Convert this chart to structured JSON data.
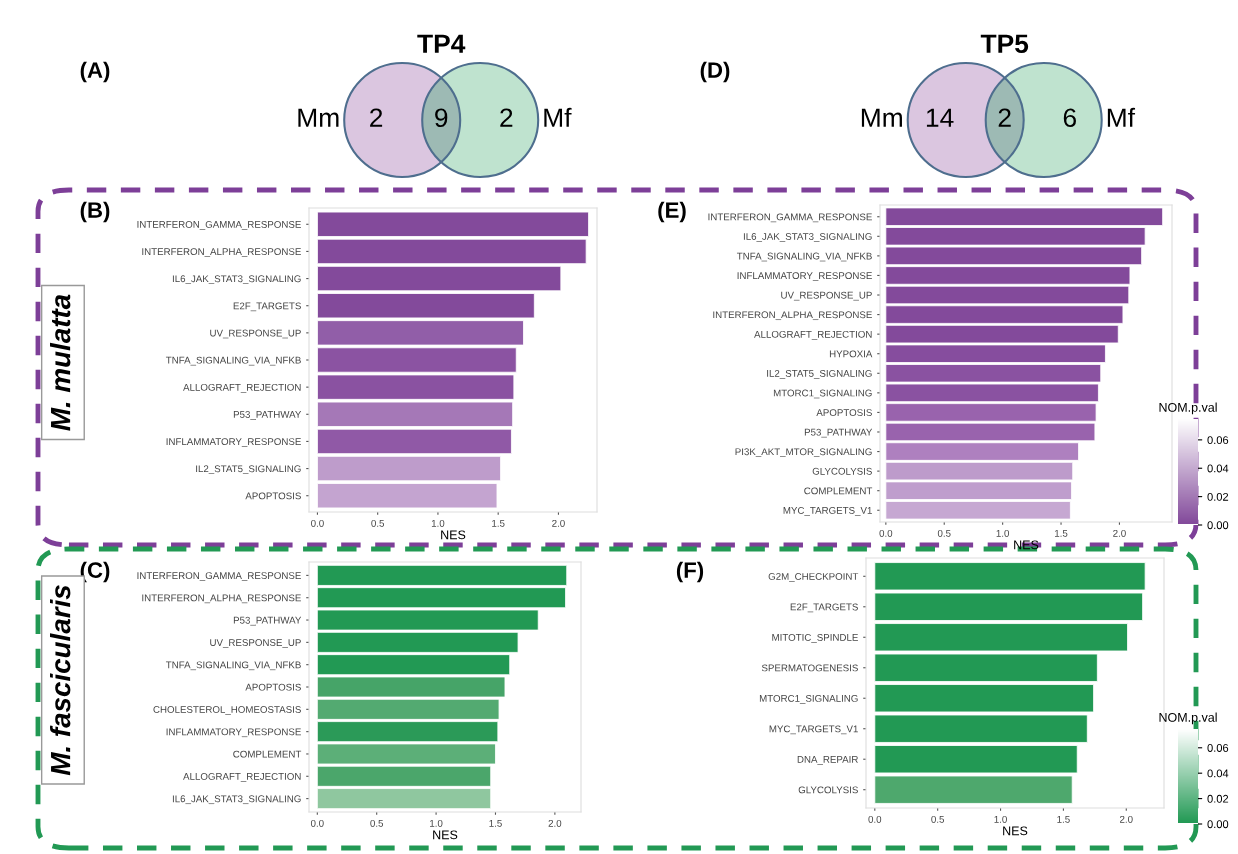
{
  "chart_data": [
    {
      "type": "other",
      "title": "TP4",
      "categories": [
        "Mm",
        null,
        "Mf"
      ],
      "values": [
        2,
        9,
        2
      ],
      "data_labels": true,
      "colors": [
        "#dbc6e0",
        "#9dbab4",
        "#bfe3cf"
      ],
      "annotations": [
        "(A)"
      ]
    },
    {
      "type": "other",
      "title": "TP5",
      "categories": [
        "Mm",
        null,
        "Mf"
      ],
      "values": [
        14,
        2,
        6
      ],
      "data_labels": true,
      "colors": [
        "#dbc6e0",
        "#9dbab4",
        "#bfe3cf"
      ],
      "annotations": [
        "(D)"
      ]
    },
    {
      "type": "bar",
      "orientation": "horizontal",
      "xlabel": "NES",
      "annotations": [
        "(B)",
        "M. mulatta"
      ],
      "categories": [
        "INTERFERON_GAMMA_RESPONSE",
        "INTERFERON_ALPHA_RESPONSE",
        "IL6_JAK_STAT3_SIGNALING",
        "E2F_TARGETS",
        "UV_RESPONSE_UP",
        "TNFA_SIGNALING_VIA_NFKB",
        "ALLOGRAFT_REJECTION",
        "P53_PATHWAY",
        "INFLAMMATORY_RESPONSE",
        "IL2_STAT5_SIGNALING",
        "APOPTOSIS"
      ],
      "values": [
        2.25,
        2.23,
        2.02,
        1.8,
        1.71,
        1.65,
        1.63,
        1.62,
        1.61,
        1.52,
        1.49
      ],
      "colors": [
        "#834a9b",
        "#834a9b",
        "#834a9b",
        "#834a9b",
        "#915ea8",
        "#8b53a2",
        "#8a52a1",
        "#a578b7",
        "#9059a6",
        "#be9ccb",
        "#c4a4d0"
      ],
      "xlim": [
        -0.07,
        2.32
      ],
      "xticks": [
        {
          "value": 0,
          "label": "0.0"
        },
        {
          "value": 0.5,
          "label": "0.5"
        },
        {
          "value": 1,
          "label": "1.0"
        },
        {
          "value": 1.5,
          "label": "1.5"
        },
        {
          "value": 2,
          "label": "2.0"
        }
      ]
    },
    {
      "type": "bar",
      "orientation": "horizontal",
      "xlabel": "NES",
      "annotations": [
        "(E)"
      ],
      "categories": [
        "INTERFERON_GAMMA_RESPONSE",
        "IL6_JAK_STAT3_SIGNALING",
        "TNFA_SIGNALING_VIA_NFKB",
        "INFLAMMATORY_RESPONSE",
        "UV_RESPONSE_UP",
        "INTERFERON_ALPHA_RESPONSE",
        "ALLOGRAFT_REJECTION",
        "HYPOXIA",
        "IL2_STAT5_SIGNALING",
        "MTORC1_SIGNALING",
        "APOPTOSIS",
        "P53_PATHWAY",
        "PI3K_AKT_MTOR_SIGNALING",
        "GLYCOLYSIS",
        "COMPLEMENT",
        "MYC_TARGETS_V1"
      ],
      "values": [
        2.37,
        2.22,
        2.19,
        2.09,
        2.08,
        2.03,
        1.99,
        1.88,
        1.84,
        1.82,
        1.8,
        1.79,
        1.65,
        1.6,
        1.59,
        1.58
      ],
      "colors": [
        "#834a9b",
        "#834a9b",
        "#834a9b",
        "#834a9b",
        "#834a9b",
        "#834a9b",
        "#834a9b",
        "#864d9e",
        "#8a52a1",
        "#8a52a1",
        "#9963ad",
        "#9963ad",
        "#ae80bf",
        "#bd9bcb",
        "#bf9ecd",
        "#c6a8d2"
      ],
      "clabel": "NOM.p.val",
      "clim": [
        0,
        0.074
      ],
      "cticks": [
        {
          "value": 0,
          "label": "0.00"
        },
        {
          "value": 0.02,
          "label": "0.02"
        },
        {
          "value": 0.04,
          "label": "0.04"
        },
        {
          "value": 0.06,
          "label": "0.06"
        }
      ],
      "xlim": [
        -0.05,
        2.45
      ],
      "xticks": [
        {
          "value": 0,
          "label": "0.0"
        },
        {
          "value": 0.5,
          "label": "0.5"
        },
        {
          "value": 1,
          "label": "1.0"
        },
        {
          "value": 1.5,
          "label": "1.5"
        },
        {
          "value": 2,
          "label": "2.0"
        }
      ]
    },
    {
      "type": "bar",
      "orientation": "horizontal",
      "xlabel": "NES",
      "annotations": [
        "(C)",
        "M. fascicularis"
      ],
      "categories": [
        "INTERFERON_GAMMA_RESPONSE",
        "INTERFERON_ALPHA_RESPONSE",
        "P53_PATHWAY",
        "UV_RESPONSE_UP",
        "TNFA_SIGNALING_VIA_NFKB",
        "APOPTOSIS",
        "CHOLESTEROL_HOMEOSTASIS",
        "INFLAMMATORY_RESPONSE",
        "COMPLEMENT",
        "ALLOGRAFT_REJECTION",
        "IL6_JAK_STAT3_SIGNALING"
      ],
      "values": [
        2.1,
        2.09,
        1.86,
        1.69,
        1.62,
        1.58,
        1.53,
        1.52,
        1.5,
        1.46,
        1.46
      ],
      "colors": [
        "#229954",
        "#229954",
        "#229954",
        "#229954",
        "#229954",
        "#46a468",
        "#53aa71",
        "#2b9a58",
        "#5caf78",
        "#4ba66b",
        "#8fc79f"
      ],
      "xlim": [
        -0.07,
        2.22
      ],
      "xticks": [
        {
          "value": 0,
          "label": "0.0"
        },
        {
          "value": 0.5,
          "label": "0.5"
        },
        {
          "value": 1,
          "label": "1.0"
        },
        {
          "value": 1.5,
          "label": "1.5"
        },
        {
          "value": 2,
          "label": "2.0"
        }
      ]
    },
    {
      "type": "bar",
      "orientation": "horizontal",
      "xlabel": "NES",
      "annotations": [
        "(F)"
      ],
      "categories": [
        "G2M_CHECKPOINT",
        "E2F_TARGETS",
        "MITOTIC_SPINDLE",
        "SPERMATOGENESIS",
        "MTORC1_SIGNALING",
        "MYC_TARGETS_V1",
        "DNA_REPAIR",
        "GLYCOLYSIS"
      ],
      "values": [
        2.15,
        2.13,
        2.01,
        1.77,
        1.74,
        1.69,
        1.61,
        1.57
      ],
      "colors": [
        "#229954",
        "#229954",
        "#229954",
        "#229954",
        "#229954",
        "#229954",
        "#229954",
        "#4ea86d"
      ],
      "clabel": "NOM.p.val",
      "clim": [
        0,
        0.074
      ],
      "cticks": [
        {
          "value": 0,
          "label": "0.00"
        },
        {
          "value": 0.02,
          "label": "0.02"
        },
        {
          "value": 0.04,
          "label": "0.04"
        },
        {
          "value": 0.06,
          "label": "0.06"
        }
      ],
      "xlim": [
        -0.07,
        2.3
      ],
      "xticks": [
        {
          "value": 0,
          "label": "0.0"
        },
        {
          "value": 0.5,
          "label": "0.5"
        },
        {
          "value": 1,
          "label": "1.0"
        },
        {
          "value": 1.5,
          "label": "1.5"
        },
        {
          "value": 2,
          "label": "2.0"
        }
      ]
    }
  ]
}
